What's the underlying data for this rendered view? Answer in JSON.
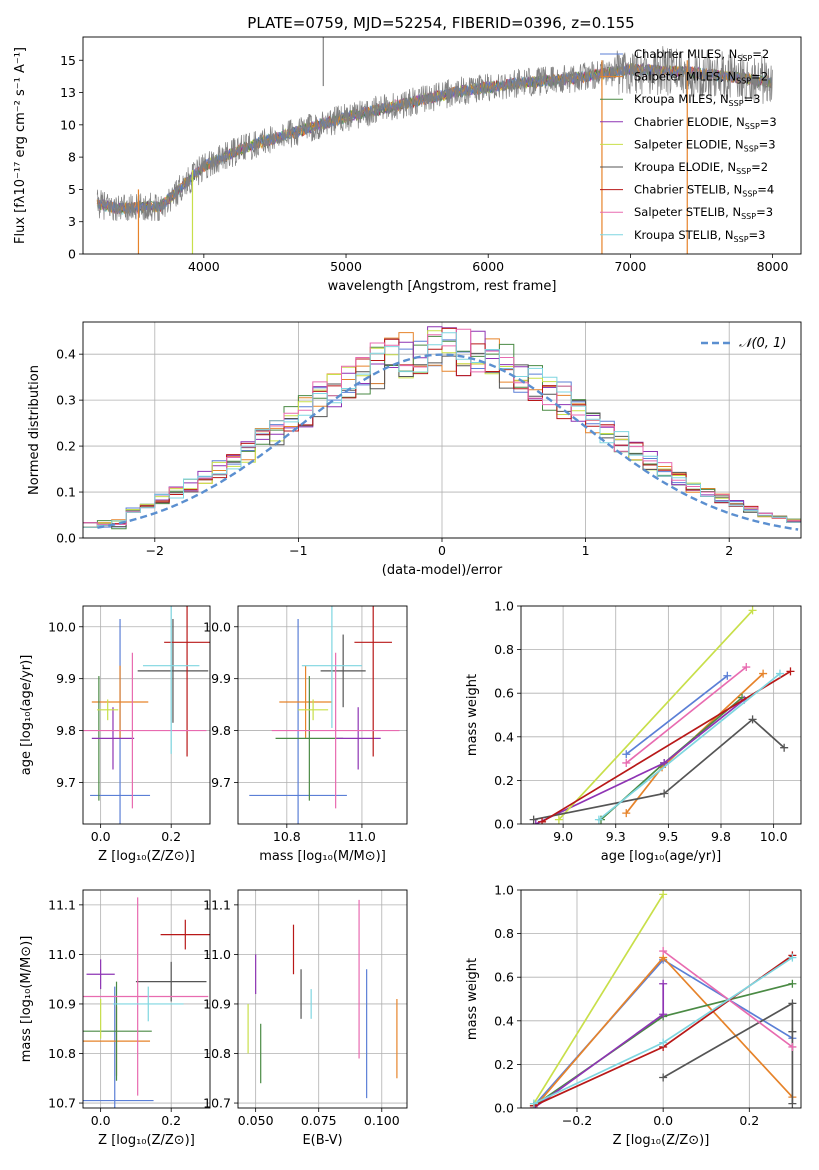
{
  "figure_title": "PLATE=0759, MJD=52254, FIBERID=0396, z=0.155",
  "colors": [
    "#5b7fd6",
    "#e6832a",
    "#4a8a44",
    "#8e34b4",
    "#c8df4a",
    "#555555",
    "#b81818",
    "#e86bb0",
    "#7fd6e0"
  ],
  "chart_data": [
    {
      "id": "spectrum",
      "type": "line",
      "title": "PLATE=0759, MJD=52254, FIBERID=0396, z=0.155",
      "xlabel": "wavelength [Angstrom, rest frame]",
      "ylabel": "Flux [fλ10⁻¹⁷ erg cm⁻² s⁻¹ A⁻¹]",
      "xlim": [
        3150,
        8200
      ],
      "ylim": [
        0,
        16.8
      ],
      "xticks": [
        4000,
        5000,
        6000,
        7000,
        8000
      ],
      "yticks": [
        0.0,
        2.5,
        5.0,
        7.5,
        10.0,
        12.5,
        15.0
      ],
      "data_color": "#808080",
      "continuum": {
        "x": [
          3250,
          3400,
          3700,
          4000,
          4300,
          4600,
          5000,
          5400,
          5800,
          6200,
          6600,
          7000,
          7400,
          7800,
          8000
        ],
        "y": [
          3.9,
          3.5,
          3.7,
          6.8,
          8.3,
          9.3,
          10.6,
          11.6,
          12.6,
          13.2,
          13.6,
          14.3,
          14.1,
          13.6,
          13.3
        ]
      },
      "legend": [
        {
          "label": "Chabrier MILES, N",
          "sub": "SSP",
          "value": "=2"
        },
        {
          "label": "Salpeter MILES, N",
          "sub": "SSP",
          "value": "=2"
        },
        {
          "label": "Kroupa MILES, N",
          "sub": "SSP",
          "value": "=3"
        },
        {
          "label": "Chabrier ELODIE, N",
          "sub": "SSP",
          "value": "=3"
        },
        {
          "label": "Salpeter ELODIE, N",
          "sub": "SSP",
          "value": "=3"
        },
        {
          "label": "Kroupa ELODIE, N",
          "sub": "SSP",
          "value": "=2"
        },
        {
          "label": "Chabrier STELIB, N",
          "sub": "SSP",
          "value": "=4"
        },
        {
          "label": "Salpeter STELIB, N",
          "sub": "SSP",
          "value": "=3"
        },
        {
          "label": "Kroupa STELIB, N",
          "sub": "SSP",
          "value": "=3"
        }
      ]
    },
    {
      "id": "hist",
      "type": "line",
      "xlabel": "(data-model)/error",
      "ylabel": "Normed distribution",
      "xlim": [
        -2.5,
        2.5
      ],
      "ylim": [
        0,
        0.47
      ],
      "xticks": [
        -2,
        -1,
        0,
        1,
        2
      ],
      "yticks": [
        0.0,
        0.1,
        0.2,
        0.3,
        0.4
      ],
      "bin_width": 0.1,
      "legend": "𝒩(0, 1)",
      "gaussian": {
        "mu": 0,
        "sigma": 1,
        "x_range": [
          -2.4,
          2.5
        ]
      }
    },
    {
      "id": "age_vs_Z",
      "type": "scatter",
      "xlabel": "Z [log₁₀(Z/Z⊙)]",
      "ylabel": "age  [log₁₀(age/yr)]",
      "xlim": [
        -0.05,
        0.31
      ],
      "ylim": [
        9.62,
        10.04
      ],
      "xticks": [
        0.0,
        0.2
      ],
      "yticks": [
        9.7,
        9.8,
        9.9,
        10.0
      ],
      "points": [
        {
          "x": 0.055,
          "xerr": 0.085,
          "y": 9.675,
          "yerr": 0.34
        },
        {
          "x": 0.055,
          "xerr": 0.08,
          "y": 9.855,
          "yerr": 0.07
        },
        {
          "x": -0.005,
          "xerr": 0.0,
          "y": 9.785,
          "yerr": 0.12
        },
        {
          "x": 0.035,
          "xerr": 0.06,
          "y": 9.785,
          "yerr": 0.06
        },
        {
          "x": 0.02,
          "xerr": 0.03,
          "y": 9.84,
          "yerr": 0.02
        },
        {
          "x": 0.205,
          "xerr": 0.1,
          "y": 9.915,
          "yerr": 0.1
        },
        {
          "x": 0.245,
          "xerr": 0.065,
          "y": 9.97,
          "yerr": 0.22
        },
        {
          "x": 0.09,
          "xerr": 0.21,
          "y": 9.8,
          "yerr": 0.15
        },
        {
          "x": 0.2,
          "xerr": 0.08,
          "y": 9.925,
          "yerr": 0.17
        }
      ]
    },
    {
      "id": "age_vs_mass",
      "type": "scatter",
      "xlabel": "mass [log₁₀(M/M⊙)]",
      "xlim": [
        10.67,
        11.12
      ],
      "ylim": [
        9.62,
        10.04
      ],
      "xticks": [
        10.8,
        11.0
      ],
      "yticks": [
        9.7,
        9.8,
        9.9,
        10.0
      ],
      "points": [
        {
          "x": 10.83,
          "xerr": 0.13,
          "y": 9.675,
          "yerr": 0.34
        },
        {
          "x": 10.85,
          "xerr": 0.07,
          "y": 9.855,
          "yerr": 0.07
        },
        {
          "x": 10.86,
          "xerr": 0.09,
          "y": 9.785,
          "yerr": 0.12
        },
        {
          "x": 10.99,
          "xerr": 0.06,
          "y": 9.785,
          "yerr": 0.06
        },
        {
          "x": 10.87,
          "xerr": 0.04,
          "y": 9.84,
          "yerr": 0.02
        },
        {
          "x": 10.95,
          "xerr": 0.06,
          "y": 9.915,
          "yerr": 0.07
        },
        {
          "x": 11.03,
          "xerr": 0.05,
          "y": 9.97,
          "yerr": 0.22
        },
        {
          "x": 10.93,
          "xerr": 0.17,
          "y": 9.8,
          "yerr": 0.15
        },
        {
          "x": 10.92,
          "xerr": 0.08,
          "y": 9.925,
          "yerr": 0.12
        }
      ]
    },
    {
      "id": "weight_vs_age",
      "type": "line",
      "xlabel": "age  [log₁₀(age/yr)]",
      "ylabel": "mass weight",
      "xlim": [
        8.8,
        10.13
      ],
      "ylim": [
        0,
        1.0
      ],
      "xticks": [
        9.0,
        9.25,
        9.5,
        9.75,
        10.0
      ],
      "yticks": [
        0.0,
        0.2,
        0.4,
        0.6,
        0.8,
        1.0
      ],
      "series": [
        {
          "x": [
            9.3,
            9.78
          ],
          "y": [
            0.32,
            0.68
          ]
        },
        {
          "x": [
            9.3,
            9.47,
            9.95
          ],
          "y": [
            0.05,
            0.26,
            0.69
          ]
        },
        {
          "x": [
            9.18,
            9.48,
            9.85
          ],
          "y": [
            0.02,
            0.28,
            0.58
          ]
        },
        {
          "x": [
            8.87,
            9.48,
            9.86
          ],
          "y": [
            0.0,
            0.28,
            0.57
          ]
        },
        {
          "x": [
            8.98,
            9.9
          ],
          "y": [
            0.02,
            0.98
          ]
        },
        {
          "x": [
            8.86,
            9.48,
            9.9,
            10.05
          ],
          "y": [
            0.02,
            0.14,
            0.48,
            0.35
          ]
        },
        {
          "x": [
            8.9,
            10.08
          ],
          "y": [
            0.01,
            0.7
          ]
        },
        {
          "x": [
            9.3,
            9.87
          ],
          "y": [
            0.28,
            0.72
          ]
        },
        {
          "x": [
            9.17,
            10.03
          ],
          "y": [
            0.02,
            0.69
          ]
        }
      ]
    },
    {
      "id": "mass_vs_Z",
      "type": "scatter",
      "xlabel": "Z [log₁₀(Z/Z⊙)]",
      "ylabel": "mass [log₁₀(M/M⊙)]",
      "xlim": [
        -0.05,
        0.31
      ],
      "ylim": [
        10.69,
        11.13
      ],
      "xticks": [
        0.0,
        0.2
      ],
      "yticks": [
        10.7,
        10.8,
        10.9,
        11.0,
        11.1
      ],
      "points": [
        {
          "x": 0.04,
          "xerr": 0.11,
          "y": 10.705,
          "yerr": 0.23
        },
        {
          "x": 0.045,
          "xerr": 0.095,
          "y": 10.825,
          "yerr": 0.07
        },
        {
          "x": 0.045,
          "xerr": 0.1,
          "y": 10.845,
          "yerr": 0.1
        },
        {
          "x": 0.0,
          "xerr": 0.04,
          "y": 10.96,
          "yerr": 0.03
        },
        {
          "x": 0.0,
          "xerr": 0.0,
          "y": 10.87,
          "yerr": 0.04
        },
        {
          "x": 0.2,
          "xerr": 0.1,
          "y": 10.945,
          "yerr": 0.04
        },
        {
          "x": 0.24,
          "xerr": 0.07,
          "y": 11.04,
          "yerr": 0.03
        },
        {
          "x": 0.105,
          "xerr": 0.2,
          "y": 10.915,
          "yerr": 0.2
        },
        {
          "x": 0.135,
          "xerr": 0.1,
          "y": 10.9,
          "yerr": 0.035
        }
      ]
    },
    {
      "id": "mass_vs_EBV",
      "type": "scatter",
      "xlabel": "E(B-V)",
      "xlim": [
        0.043,
        0.11
      ],
      "ylim": [
        10.69,
        11.13
      ],
      "xticks": [
        0.05,
        0.075,
        0.1
      ],
      "yticks": [
        10.7,
        10.8,
        10.9,
        11.0,
        11.1
      ],
      "points": [
        {
          "x": 0.094,
          "xerr": 0.0,
          "y": 10.84,
          "yerr": 0.13
        },
        {
          "x": 0.106,
          "xerr": 0.0,
          "y": 10.83,
          "yerr": 0.08
        },
        {
          "x": 0.052,
          "xerr": 0.0,
          "y": 10.8,
          "yerr": 0.06
        },
        {
          "x": 0.05,
          "xerr": 0.0,
          "y": 10.96,
          "yerr": 0.04
        },
        {
          "x": 0.047,
          "xerr": 0.0,
          "y": 10.85,
          "yerr": 0.05
        },
        {
          "x": 0.068,
          "xerr": 0.0,
          "y": 10.92,
          "yerr": 0.05
        },
        {
          "x": 0.065,
          "xerr": 0.0,
          "y": 11.01,
          "yerr": 0.05
        },
        {
          "x": 0.091,
          "xerr": 0.0,
          "y": 10.95,
          "yerr": 0.16
        },
        {
          "x": 0.072,
          "xerr": 0.0,
          "y": 10.9,
          "yerr": 0.03
        }
      ]
    },
    {
      "id": "weight_vs_Z",
      "type": "line",
      "xlabel": "Z [log₁₀(Z/Z⊙)]",
      "ylabel": "mass weight",
      "xlim": [
        -0.33,
        0.32
      ],
      "ylim": [
        0,
        1.0
      ],
      "xticks": [
        -0.2,
        0.0,
        0.2
      ],
      "yticks": [
        0.0,
        0.2,
        0.4,
        0.6,
        0.8,
        1.0
      ],
      "series": [
        {
          "x": [
            -0.3,
            0.0,
            0.3
          ],
          "y": [
            0.01,
            0.68,
            0.32
          ]
        },
        {
          "x": [
            -0.3,
            0.0,
            0.3
          ],
          "y": [
            0.0,
            0.69,
            0.05
          ]
        },
        {
          "x": [
            -0.3,
            0.0,
            0.3
          ],
          "y": [
            0.01,
            0.42,
            0.57
          ]
        },
        {
          "x": [
            -0.3,
            0.0,
            0.0
          ],
          "y": [
            0.0,
            0.43,
            0.57
          ]
        },
        {
          "x": [
            -0.3,
            0.0
          ],
          "y": [
            0.02,
            0.98
          ]
        },
        {
          "x": [
            0.0,
            0.3,
            0.3,
            0.3
          ],
          "y": [
            0.14,
            0.48,
            0.35,
            0.02
          ]
        },
        {
          "x": [
            -0.3,
            0.0,
            0.3
          ],
          "y": [
            0.01,
            0.28,
            0.7
          ]
        },
        {
          "x": [
            0.0,
            0.3
          ],
          "y": [
            0.72,
            0.28
          ]
        },
        {
          "x": [
            -0.3,
            0.0,
            0.3
          ],
          "y": [
            0.02,
            0.3,
            0.69
          ]
        }
      ]
    }
  ]
}
